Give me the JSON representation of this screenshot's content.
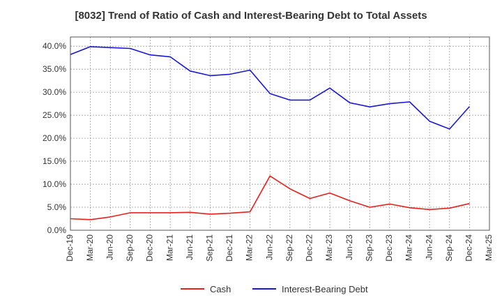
{
  "chart_data": {
    "type": "line",
    "title": "[8032]  Trend of Ratio of Cash and Interest-Bearing Debt to Total Assets",
    "xlabel": "",
    "ylabel": "",
    "categories": [
      "Dec-19",
      "Mar-20",
      "Jun-20",
      "Sep-20",
      "Dec-20",
      "Mar-21",
      "Jun-21",
      "Sep-21",
      "Dec-21",
      "Mar-22",
      "Jun-22",
      "Sep-22",
      "Dec-22",
      "Mar-23",
      "Jun-23",
      "Sep-23",
      "Dec-23",
      "Mar-24",
      "Jun-24",
      "Sep-24",
      "Dec-24",
      "Mar-25"
    ],
    "ylim": [
      0,
      42
    ],
    "yticks": [
      0,
      5,
      10,
      15,
      20,
      25,
      30,
      35,
      40
    ],
    "ytick_labels": [
      "0.0%",
      "5.0%",
      "10.0%",
      "15.0%",
      "20.0%",
      "25.0%",
      "30.0%",
      "35.0%",
      "40.0%"
    ],
    "grid": true,
    "legend_position": "bottom",
    "series": [
      {
        "name": "Cash",
        "color": "#e8201e",
        "values": [
          2.5,
          2.3,
          2.9,
          3.8,
          3.8,
          3.8,
          3.9,
          3.5,
          3.7,
          4.0,
          11.8,
          9.0,
          6.9,
          8.1,
          6.4,
          5.0,
          5.7,
          4.9,
          4.5,
          4.8,
          5.8,
          null
        ]
      },
      {
        "name": "Interest-Bearing Debt",
        "color": "#1a17d6",
        "values": [
          38.2,
          39.9,
          39.7,
          39.5,
          38.1,
          37.7,
          34.6,
          33.6,
          33.9,
          34.8,
          29.7,
          28.3,
          28.3,
          30.9,
          27.7,
          26.8,
          27.5,
          27.9,
          23.7,
          22.0,
          26.9,
          null
        ]
      }
    ]
  }
}
